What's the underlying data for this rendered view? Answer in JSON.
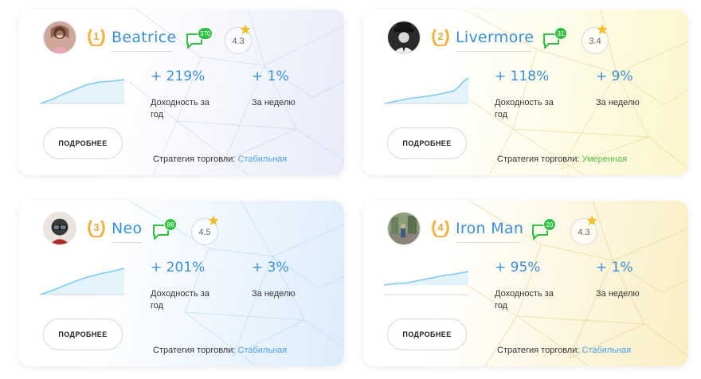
{
  "ui": {
    "more_label": "ПОДРОБНЕЕ",
    "yield_year_label": "Доходность за год",
    "week_label": "За неделю",
    "strategy_label": "Стратегия торговли:"
  },
  "colors": {
    "accent": "#3a8fd6",
    "badge_green": "#2fbf42",
    "star_gold": "#f3c02a",
    "strategy_stable": "#4b9ee3",
    "strategy_moderate": "#5cb84a"
  },
  "traders": [
    {
      "rank": "1",
      "name": "Beatrice",
      "messages": "370",
      "rating": "4.3",
      "yield_year": "+ 219%",
      "week": "+ 1%",
      "strategy": "Стабильная",
      "strategy_color": "blue",
      "avatar_icon": "avatar-girl-icon"
    },
    {
      "rank": "2",
      "name": "Livermore",
      "messages": "31",
      "rating": "3.4",
      "yield_year": "+ 118%",
      "week": "+ 9%",
      "strategy": "Умеренная",
      "strategy_color": "green",
      "avatar_icon": "avatar-man-hat-icon"
    },
    {
      "rank": "3",
      "name": "Neo",
      "messages": "88",
      "rating": "4.5",
      "yield_year": "+ 201%",
      "week": "+ 3%",
      "strategy": "Стабильная",
      "strategy_color": "blue",
      "avatar_icon": "avatar-helmet-icon"
    },
    {
      "rank": "4",
      "name": "Iron Man",
      "messages": "20",
      "rating": "4.3",
      "yield_year": "+ 95%",
      "week": "+ 1%",
      "strategy": "Стабильная",
      "strategy_color": "blue",
      "avatar_icon": "avatar-street-icon"
    }
  ]
}
